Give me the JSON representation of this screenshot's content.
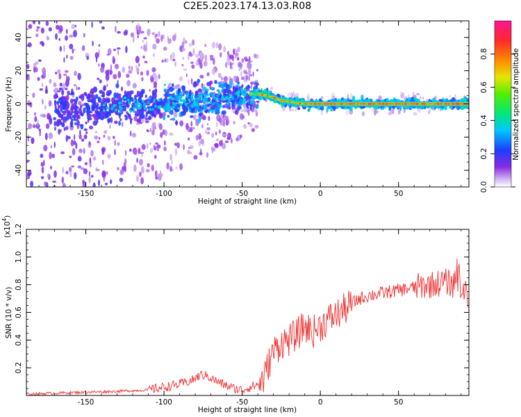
{
  "title": "C2E5.2023.174.13.03.R08",
  "chart_data": [
    {
      "type": "heatmap",
      "xlabel": "Height of straight line (km)",
      "ylabel": "Frequency (Hz)",
      "xlim": [
        -188,
        95
      ],
      "ylim": [
        -50,
        50
      ],
      "xticks": [
        -150,
        -100,
        -50,
        0,
        50
      ],
      "yticks": [
        -40,
        -20,
        0,
        20,
        40
      ],
      "colorbar": {
        "label": "Normalized spectral amplitude",
        "range": [
          0,
          1
        ],
        "ticks": [
          0.0,
          0.2,
          0.4,
          0.6,
          0.8
        ],
        "colors": [
          "#ffffff",
          "#8a2be2",
          "#1e3cff",
          "#00c8ff",
          "#00e87a",
          "#55ee00",
          "#e6e600",
          "#ff8c00",
          "#ff2a2a",
          "#ff1493"
        ]
      },
      "ridge": {
        "x": [
          -160,
          -140,
          -120,
          -100,
          -80,
          -60,
          -50,
          -40,
          -30,
          -25,
          -20,
          -15,
          -10,
          -5,
          0,
          5,
          10,
          20,
          40,
          60,
          80,
          95
        ],
        "frequency": [
          -3,
          -2,
          -1,
          0,
          2,
          4,
          6,
          6,
          4,
          2,
          1.5,
          0.5,
          0,
          0,
          0,
          0,
          0,
          0,
          0,
          0,
          0,
          0
        ]
      },
      "grid": false
    },
    {
      "type": "line",
      "xlabel": "Height of straight line (km)",
      "ylabel": "SNR (10 * v/v)",
      "exponent_label": "(x10",
      "exponent_power": "4",
      "xlim": [
        -188,
        95
      ],
      "ylim": [
        0,
        1.2
      ],
      "xticks": [
        -150,
        -100,
        -50,
        0,
        50
      ],
      "yticks": [
        0.2,
        0.4,
        0.6,
        0.8,
        1.0,
        1.2
      ],
      "ytick_labels": [
        "0.2",
        "0.4",
        "0.6",
        "0.8",
        "1.0",
        "1.2"
      ],
      "color": "#ee3030",
      "series": [
        {
          "x": [
            -188,
            -160,
            -130,
            -110,
            -100,
            -90,
            -82,
            -76,
            -72,
            -66,
            -60,
            -55,
            -50,
            -45,
            -40,
            -36,
            -34,
            -30,
            -25,
            -20,
            -15,
            -10,
            -5,
            0,
            5,
            10,
            15,
            20,
            25,
            30,
            40,
            50,
            60,
            70,
            80,
            85,
            88,
            90,
            92,
            95
          ],
          "y": [
            0.01,
            0.02,
            0.03,
            0.04,
            0.06,
            0.08,
            0.11,
            0.15,
            0.14,
            0.1,
            0.07,
            0.05,
            0.04,
            0.06,
            0.08,
            0.12,
            0.2,
            0.32,
            0.38,
            0.4,
            0.44,
            0.5,
            0.46,
            0.5,
            0.55,
            0.58,
            0.62,
            0.66,
            0.7,
            0.72,
            0.74,
            0.76,
            0.78,
            0.8,
            0.82,
            0.8,
            0.9,
            0.78,
            0.72,
            0.7
          ]
        }
      ]
    }
  ]
}
